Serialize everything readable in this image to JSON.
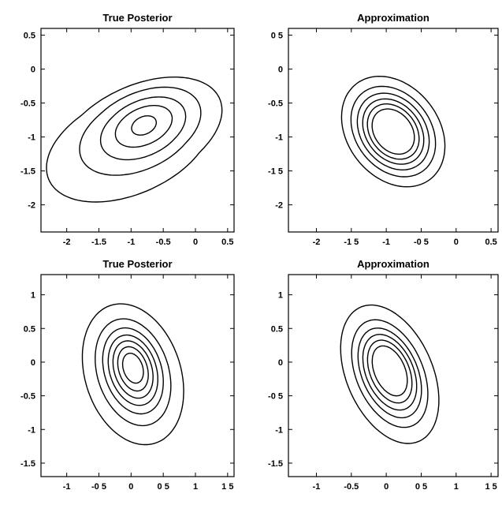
{
  "chart_data": [
    {
      "type": "contour",
      "title": "True Posterior",
      "xlim": [
        -2.4,
        0.6
      ],
      "ylim": [
        -2.4,
        0.6
      ],
      "xticks": [
        {
          "v": -2,
          "label": "-2"
        },
        {
          "v": -1.5,
          "label": "-1.5"
        },
        {
          "v": -1,
          "label": "-1"
        },
        {
          "v": -0.5,
          "label": "-0.5"
        },
        {
          "v": 0,
          "label": "0"
        },
        {
          "v": 0.5,
          "label": "0.5"
        }
      ],
      "yticks": [
        {
          "v": 0.5,
          "label": "0.5"
        },
        {
          "v": 0,
          "label": "0"
        },
        {
          "v": -0.5,
          "label": "-0.5"
        },
        {
          "v": -1,
          "label": "-1"
        },
        {
          "v": -1.5,
          "label": "-1.5"
        },
        {
          "v": -2,
          "label": "-2"
        }
      ],
      "contours": [
        {
          "cx": -0.85,
          "cy": -0.95,
          "rx": 1.33,
          "ry": 0.72,
          "rot": 22,
          "skew": 0.22
        },
        {
          "cx": -0.82,
          "cy": -0.88,
          "rx": 0.95,
          "ry": 0.54,
          "rot": 22,
          "skew": 0.12
        },
        {
          "cx": -0.8,
          "cy": -0.86,
          "rx": 0.68,
          "ry": 0.4,
          "rot": 22,
          "skew": 0.06
        },
        {
          "cx": -0.8,
          "cy": -0.84,
          "rx": 0.46,
          "ry": 0.27,
          "rot": 22,
          "skew": 0.02
        },
        {
          "cx": -0.8,
          "cy": -0.83,
          "rx": 0.2,
          "ry": 0.13,
          "rot": 22,
          "skew": 0
        }
      ]
    },
    {
      "type": "contour",
      "title": "Approximation",
      "xlim": [
        -2.4,
        0.6
      ],
      "ylim": [
        -2.4,
        0.6
      ],
      "xticks": [
        {
          "v": -2,
          "label": "-2"
        },
        {
          "v": -1.5,
          "label": "-1 5"
        },
        {
          "v": -1,
          "label": "-1"
        },
        {
          "v": -0.5,
          "label": "-0 5"
        },
        {
          "v": 0,
          "label": "0"
        },
        {
          "v": 0.5,
          "label": "0.5"
        }
      ],
      "yticks": [
        {
          "v": 0.5,
          "label": "0 5"
        },
        {
          "v": 0,
          "label": "0"
        },
        {
          "v": -0.5,
          "label": "-0.5"
        },
        {
          "v": -1,
          "label": "-1"
        },
        {
          "v": -1.5,
          "label": "-1 5"
        },
        {
          "v": -2,
          "label": "-2"
        }
      ],
      "contours": [
        {
          "cx": -0.9,
          "cy": -0.92,
          "rx": 0.66,
          "ry": 0.88,
          "rot": 35,
          "skew": 0
        },
        {
          "cx": -0.9,
          "cy": -0.92,
          "rx": 0.54,
          "ry": 0.72,
          "rot": 35,
          "skew": 0
        },
        {
          "cx": -0.9,
          "cy": -0.92,
          "rx": 0.46,
          "ry": 0.61,
          "rot": 35,
          "skew": 0
        },
        {
          "cx": -0.9,
          "cy": -0.92,
          "rx": 0.39,
          "ry": 0.52,
          "rot": 35,
          "skew": 0
        },
        {
          "cx": -0.9,
          "cy": -0.92,
          "rx": 0.33,
          "ry": 0.44,
          "rot": 35,
          "skew": 0
        },
        {
          "cx": -0.9,
          "cy": -0.92,
          "rx": 0.27,
          "ry": 0.36,
          "rot": 35,
          "skew": 0
        }
      ]
    },
    {
      "type": "contour",
      "title": "True Posterior",
      "xlim": [
        -1.4,
        1.6
      ],
      "ylim": [
        -1.7,
        1.3
      ],
      "xticks": [
        {
          "v": -1,
          "label": "-1"
        },
        {
          "v": -0.5,
          "label": "-0 5"
        },
        {
          "v": 0,
          "label": "0"
        },
        {
          "v": 0.5,
          "label": "0 5"
        },
        {
          "v": 1,
          "label": "1"
        },
        {
          "v": 1.5,
          "label": "1 5"
        }
      ],
      "yticks": [
        {
          "v": 1,
          "label": "1"
        },
        {
          "v": 0.5,
          "label": "0.5"
        },
        {
          "v": 0,
          "label": "0"
        },
        {
          "v": -0.5,
          "label": "-0.5"
        },
        {
          "v": -1,
          "label": "-1"
        },
        {
          "v": -1.5,
          "label": "-1.5"
        }
      ],
      "contours": [
        {
          "cx": 0.03,
          "cy": -0.18,
          "rx": 0.74,
          "ry": 1.08,
          "rot": 20,
          "skew": 0
        },
        {
          "cx": 0.03,
          "cy": -0.15,
          "rx": 0.55,
          "ry": 0.82,
          "rot": 20,
          "skew": 0
        },
        {
          "cx": 0.03,
          "cy": -0.13,
          "rx": 0.44,
          "ry": 0.66,
          "rot": 20,
          "skew": 0
        },
        {
          "cx": 0.03,
          "cy": -0.12,
          "rx": 0.36,
          "ry": 0.54,
          "rot": 20,
          "skew": 0
        },
        {
          "cx": 0.03,
          "cy": -0.11,
          "rx": 0.29,
          "ry": 0.44,
          "rot": 20,
          "skew": 0
        },
        {
          "cx": 0.03,
          "cy": -0.1,
          "rx": 0.22,
          "ry": 0.34,
          "rot": 20,
          "skew": 0
        },
        {
          "cx": 0.03,
          "cy": -0.09,
          "rx": 0.15,
          "ry": 0.23,
          "rot": 20,
          "skew": 0
        }
      ]
    },
    {
      "type": "contour",
      "title": "Approximation",
      "xlim": [
        -1.4,
        1.6
      ],
      "ylim": [
        -1.7,
        1.3
      ],
      "xticks": [
        {
          "v": -1,
          "label": "-1"
        },
        {
          "v": -0.5,
          "label": "-0.5"
        },
        {
          "v": 0,
          "label": "0"
        },
        {
          "v": 0.5,
          "label": "0 5"
        },
        {
          "v": 1,
          "label": "1"
        },
        {
          "v": 1.5,
          "label": "1 5"
        }
      ],
      "yticks": [
        {
          "v": 1,
          "label": "1"
        },
        {
          "v": 0.5,
          "label": "0.5"
        },
        {
          "v": 0,
          "label": "0"
        },
        {
          "v": -0.5,
          "label": "-0 5"
        },
        {
          "v": -1,
          "label": "-1"
        },
        {
          "v": -1.5,
          "label": "-1.5"
        }
      ],
      "contours": [
        {
          "cx": 0.05,
          "cy": -0.18,
          "rx": 0.62,
          "ry": 1.08,
          "rot": 22,
          "skew": 0
        },
        {
          "cx": 0.05,
          "cy": -0.17,
          "rx": 0.48,
          "ry": 0.84,
          "rot": 22,
          "skew": 0
        },
        {
          "cx": 0.05,
          "cy": -0.16,
          "rx": 0.4,
          "ry": 0.7,
          "rot": 22,
          "skew": 0
        },
        {
          "cx": 0.05,
          "cy": -0.15,
          "rx": 0.34,
          "ry": 0.59,
          "rot": 22,
          "skew": 0
        },
        {
          "cx": 0.05,
          "cy": -0.14,
          "rx": 0.28,
          "ry": 0.49,
          "rot": 22,
          "skew": 0
        },
        {
          "cx": 0.05,
          "cy": -0.13,
          "rx": 0.22,
          "ry": 0.39,
          "rot": 22,
          "skew": 0
        }
      ]
    }
  ]
}
